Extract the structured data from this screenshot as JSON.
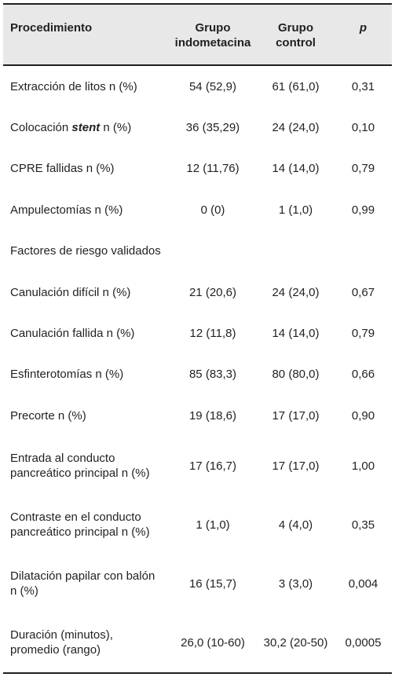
{
  "table": {
    "headers": {
      "procedimiento": "Procedimiento",
      "grupo_indometacina": [
        "Grupo",
        "indometacina"
      ],
      "grupo_control": [
        "Grupo",
        "control"
      ],
      "p": "p"
    },
    "rows": [
      {
        "label": "Extracción de litos n (%)",
        "indometacina": "54 (52,9)",
        "control": "61 (61,0)",
        "p": "0,31"
      },
      {
        "label_pre": "Colocación ",
        "label_em": "stent",
        "label_post": " n (%)",
        "indometacina": "36 (35,29)",
        "control": "24 (24,0)",
        "p": "0,10"
      },
      {
        "label": "CPRE fallidas n (%)",
        "indometacina": "12 (11,76)",
        "control": "14 (14,0)",
        "p": "0,79"
      },
      {
        "label": "Ampulectomías n (%)",
        "indometacina": "0 (0)",
        "control": "1 (1,0)",
        "p": "0,99"
      },
      {
        "label": "Factores de riesgo validados"
      },
      {
        "label": "Canulación difícil n (%)",
        "indometacina": "21 (20,6)",
        "control": "24 (24,0)",
        "p": "0,67"
      },
      {
        "label": "Canulación fallida n (%)",
        "indometacina": "12 (11,8)",
        "control": "14 (14,0)",
        "p": "0,79"
      },
      {
        "label": "Esfinterotomías n (%)",
        "indometacina": "85 (83,3)",
        "control": "80 (80,0)",
        "p": "0,66"
      },
      {
        "label": "Precorte n (%)",
        "indometacina": "19 (18,6)",
        "control": "17 (17,0)",
        "p": "0,90"
      },
      {
        "label_lines": [
          "Entrada al conducto",
          "pancreático principal n (%)"
        ],
        "indometacina": "17 (16,7)",
        "control": "17 (17,0)",
        "p": "1,00"
      },
      {
        "label_lines": [
          "Contraste en el conducto",
          "pancreático principal n (%)"
        ],
        "indometacina": "1 (1,0)",
        "control": "4 (4,0)",
        "p": "0,35"
      },
      {
        "label_lines": [
          "Dilatación papilar con balón",
          "n (%)"
        ],
        "indometacina": "16 (15,7)",
        "control": "3 (3,0)",
        "p": "0,004"
      },
      {
        "label_lines": [
          "Duración (minutos),",
          "promedio (rango)"
        ],
        "indometacina": "26,0 (10-60)",
        "control": "30,2 (20-50)",
        "p": "0,0005"
      }
    ]
  }
}
